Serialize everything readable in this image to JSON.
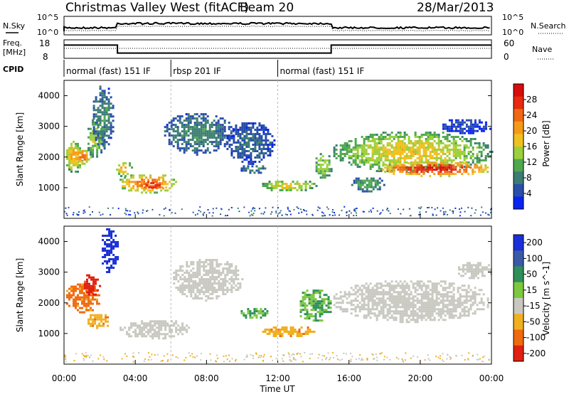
{
  "header": {
    "station": "Christmas Valley West (fitACF)",
    "beam": "Beam 20",
    "date": "28/Mar/2013"
  },
  "noise_panel": {
    "left_label": "N.Sky",
    "left_ticks": [
      "10^5",
      "10^0"
    ],
    "right_label": "N.Search",
    "right_ticks": [
      "10^5",
      "10^0"
    ]
  },
  "freq_panel": {
    "left_label_1": "Freq.",
    "left_label_2": "[MHz]",
    "left_ticks": [
      "18",
      "8"
    ],
    "right_label": "Nave",
    "right_ticks": [
      "60",
      "0"
    ]
  },
  "cpid": {
    "label": "CPID",
    "modes": [
      {
        "start_h": 0,
        "end_h": 6,
        "text": "normal (fast) 151 IF"
      },
      {
        "start_h": 6,
        "end_h": 12,
        "text": "rbsp 201 IF"
      },
      {
        "start_h": 12,
        "end_h": 24,
        "text": "normal (fast) 151 IF"
      }
    ]
  },
  "chart_data": [
    {
      "type": "heatmap",
      "title": "",
      "xlabel": "",
      "ylabel": "Slant Range [km]",
      "xlim": [
        0,
        24
      ],
      "ylim": [
        0,
        4500
      ],
      "yticks": [
        1000,
        2000,
        3000,
        4000
      ],
      "colorbar": {
        "label": "Power [dB]",
        "range": [
          0,
          32
        ],
        "ticks": [
          4,
          8,
          12,
          16,
          20,
          24,
          28
        ],
        "colors": [
          "#0a24f0",
          "#2a4fa8",
          "#3b7d72",
          "#4fa84f",
          "#9bd03c",
          "#f0c020",
          "#f59a18",
          "#f06814",
          "#e82a10",
          "#d80c0c"
        ]
      },
      "regions": [
        {
          "t": [
            0.0,
            1.0
          ],
          "r": [
            1500,
            2600
          ],
          "level": 18
        },
        {
          "t": [
            0.5,
            1.5
          ],
          "r": [
            1800,
            2300
          ],
          "level": 22
        },
        {
          "t": [
            1.2,
            2.2
          ],
          "r": [
            2000,
            3300
          ],
          "level": 14
        },
        {
          "t": [
            1.5,
            2.8
          ],
          "r": [
            2300,
            4400
          ],
          "level": 8
        },
        {
          "t": [
            2.8,
            3.8
          ],
          "r": [
            1400,
            1900
          ],
          "level": 18
        },
        {
          "t": [
            3.0,
            6.3
          ],
          "r": [
            850,
            1500
          ],
          "level": 22
        },
        {
          "t": [
            4.0,
            5.8
          ],
          "r": [
            950,
            1250
          ],
          "level": 27
        },
        {
          "t": [
            5.5,
            9.5
          ],
          "r": [
            2100,
            3500
          ],
          "level": 8
        },
        {
          "t": [
            9.0,
            11.8
          ],
          "r": [
            1800,
            3200
          ],
          "level": 6
        },
        {
          "t": [
            9.8,
            11.5
          ],
          "r": [
            1500,
            1800
          ],
          "level": 8
        },
        {
          "t": [
            11.0,
            14.2
          ],
          "r": [
            900,
            1300
          ],
          "level": 16
        },
        {
          "t": [
            14.0,
            15.0
          ],
          "r": [
            1300,
            2200
          ],
          "level": 14
        },
        {
          "t": [
            15.0,
            24.0
          ],
          "r": [
            1500,
            2900
          ],
          "level": 16
        },
        {
          "t": [
            17.5,
            24.0
          ],
          "r": [
            1400,
            1900
          ],
          "level": 26
        },
        {
          "t": [
            16.0,
            18.0
          ],
          "r": [
            900,
            1400
          ],
          "level": 10
        },
        {
          "t": [
            21.0,
            24.0
          ],
          "r": [
            2800,
            3300
          ],
          "level": 4
        }
      ]
    },
    {
      "type": "heatmap",
      "title": "",
      "xlabel": "Time UT",
      "ylabel": "Slant Range [km]",
      "xlim": [
        0,
        24
      ],
      "ylim": [
        0,
        4500
      ],
      "yticks": [
        1000,
        2000,
        3000,
        4000
      ],
      "xticks": [
        "00:00",
        "04:00",
        "08:00",
        "12:00",
        "16:00",
        "20:00",
        "00:00"
      ],
      "colorbar": {
        "label": "Velocity [m s^-1]",
        "ticks": [
          "200",
          "100",
          "50",
          "15",
          "-15",
          "-50",
          "-100",
          "-200"
        ],
        "colors": [
          "#1a2fd8",
          "#3a5aa8",
          "#2f8f5a",
          "#7cc840",
          "#c8c8c0",
          "#f0b020",
          "#f06a10",
          "#e02010"
        ]
      },
      "regions": [
        {
          "t": [
            0.0,
            2.0
          ],
          "r": [
            1700,
            2700
          ],
          "v": -60
        },
        {
          "t": [
            1.0,
            2.0
          ],
          "r": [
            2200,
            3000
          ],
          "v": -110
        },
        {
          "t": [
            2.0,
            3.0
          ],
          "r": [
            3000,
            4500
          ],
          "v": 180
        },
        {
          "t": [
            1.2,
            2.6
          ],
          "r": [
            1200,
            1700
          ],
          "v": -40
        },
        {
          "t": [
            3.0,
            7.0
          ],
          "r": [
            850,
            1500
          ],
          "v": 0
        },
        {
          "t": [
            6.0,
            10.0
          ],
          "r": [
            2100,
            3500
          ],
          "v": 0
        },
        {
          "t": [
            9.8,
            11.5
          ],
          "r": [
            1500,
            1900
          ],
          "v": 30
        },
        {
          "t": [
            11.0,
            14.0
          ],
          "r": [
            900,
            1300
          ],
          "v": -40
        },
        {
          "t": [
            13.0,
            15.0
          ],
          "r": [
            1400,
            2500
          ],
          "v": 30
        },
        {
          "t": [
            15.0,
            24.0
          ],
          "r": [
            1400,
            2800
          ],
          "v": 0
        },
        {
          "t": [
            22.0,
            24.0
          ],
          "r": [
            2800,
            3400
          ],
          "v": 0
        }
      ]
    }
  ]
}
